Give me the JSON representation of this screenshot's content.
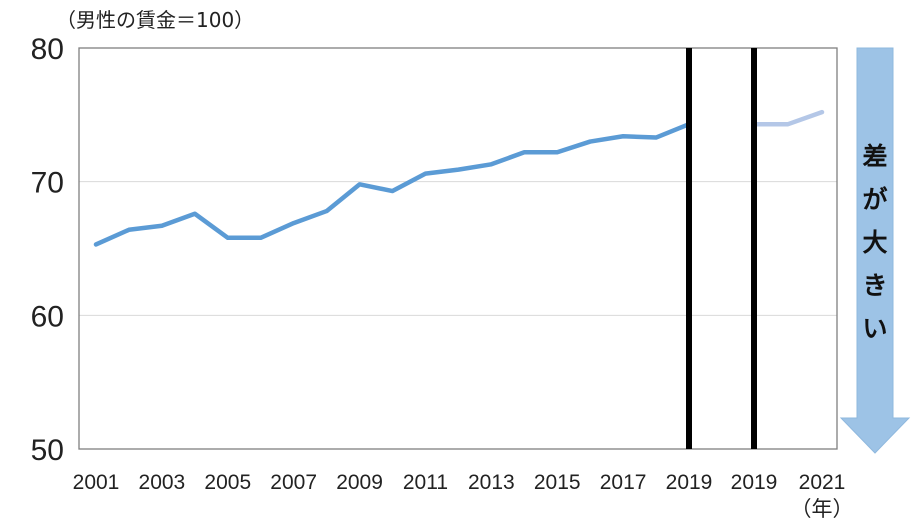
{
  "chart_data": {
    "type": "line",
    "ylabel": "（男性の賃金＝100）",
    "xunit": "（年）",
    "ylim": [
      50,
      80
    ],
    "yticks": [
      "80",
      "70",
      "60",
      "50"
    ],
    "xticks_left": [
      "2001",
      "2003",
      "2005",
      "2007",
      "2009",
      "2011",
      "2013",
      "2015",
      "2017",
      "2019"
    ],
    "xticks_right": [
      "2019",
      "2021"
    ],
    "grid": true,
    "series": [
      {
        "color": "#5B9BD5",
        "x": [
          2001,
          2002,
          2003,
          2004,
          2005,
          2006,
          2007,
          2008,
          2009,
          2010,
          2011,
          2012,
          2013,
          2014,
          2015,
          2016,
          2017,
          2018,
          2019
        ],
        "values": [
          65.3,
          66.4,
          66.7,
          67.6,
          65.8,
          65.8,
          66.9,
          67.8,
          69.8,
          69.3,
          70.6,
          70.9,
          71.3,
          72.2,
          72.2,
          73.0,
          73.4,
          73.3,
          74.3
        ]
      },
      {
        "color": "#B4C7E7",
        "x": [
          2019,
          2020,
          2021
        ],
        "values": [
          74.3,
          74.3,
          75.2
        ]
      }
    ],
    "annotation": {
      "text_chars": [
        "差",
        "が",
        "大",
        "き",
        "い"
      ],
      "direction": "down",
      "color": "#9DC3E6"
    }
  }
}
